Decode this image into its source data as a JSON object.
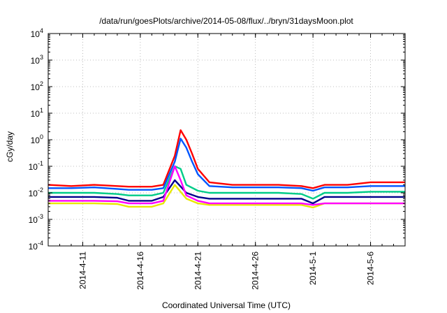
{
  "chart_data": {
    "type": "line",
    "title": "/data/run/goesPlots/archive/2014-05-08/flux/../bryn/31daysMoon.plot",
    "xlabel": "Coordinated Universal Time (UTC)",
    "ylabel": "cGy/day",
    "yscale": "log",
    "ylim": [
      0.0001,
      10000
    ],
    "y_ticks": [
      {
        "value": 0.0001,
        "base": "10",
        "exp": "-4"
      },
      {
        "value": 0.001,
        "base": "10",
        "exp": "-3"
      },
      {
        "value": 0.01,
        "base": "10",
        "exp": "-2"
      },
      {
        "value": 0.1,
        "base": "10",
        "exp": "-1"
      },
      {
        "value": 1,
        "base": "10",
        "exp": "0"
      },
      {
        "value": 10,
        "base": "10",
        "exp": "1"
      },
      {
        "value": 100,
        "base": "10",
        "exp": "2"
      },
      {
        "value": 1000,
        "base": "10",
        "exp": "3"
      },
      {
        "value": 10000,
        "base": "10",
        "exp": "4"
      }
    ],
    "xlim": [
      "2014-04-08",
      "2014-05-09"
    ],
    "x_ticks": [
      "2014-4-11",
      "2014-4-16",
      "2014-4-21",
      "2014-4-26",
      "2014-5-1",
      "2014-5-6"
    ],
    "x_tick_dates": [
      "2014-04-11",
      "2014-04-16",
      "2014-04-21",
      "2014-04-26",
      "2014-05-01",
      "2014-05-06"
    ],
    "grid": true,
    "series": [
      {
        "color": "#ff0000",
        "x": [
          "2014-04-08",
          "2014-04-10",
          "2014-04-12",
          "2014-04-14",
          "2014-04-15",
          "2014-04-17",
          "2014-04-18",
          "2014-04-19",
          "2014-04-19T12:00",
          "2014-04-20",
          "2014-04-20T12:00",
          "2014-04-21",
          "2014-04-22",
          "2014-04-24",
          "2014-04-26",
          "2014-04-28",
          "2014-04-30",
          "2014-05-01",
          "2014-05-02",
          "2014-05-04",
          "2014-05-06",
          "2014-05-09"
        ],
        "values": [
          0.02,
          0.018,
          0.02,
          0.018,
          0.017,
          0.017,
          0.02,
          0.25,
          2.3,
          1.0,
          0.3,
          0.08,
          0.025,
          0.02,
          0.02,
          0.02,
          0.018,
          0.015,
          0.02,
          0.02,
          0.025,
          0.025
        ]
      },
      {
        "color": "#0055ff",
        "x": [
          "2014-04-08",
          "2014-04-10",
          "2014-04-12",
          "2014-04-14",
          "2014-04-15",
          "2014-04-17",
          "2014-04-18",
          "2014-04-19",
          "2014-04-19T12:00",
          "2014-04-20",
          "2014-04-20T12:00",
          "2014-04-21",
          "2014-04-22",
          "2014-04-24",
          "2014-04-26",
          "2014-04-28",
          "2014-04-30",
          "2014-05-01",
          "2014-05-02",
          "2014-05-04",
          "2014-05-06",
          "2014-05-09"
        ],
        "values": [
          0.015,
          0.015,
          0.016,
          0.014,
          0.013,
          0.013,
          0.015,
          0.15,
          1.1,
          0.5,
          0.15,
          0.05,
          0.018,
          0.016,
          0.016,
          0.016,
          0.015,
          0.012,
          0.016,
          0.016,
          0.018,
          0.018
        ]
      },
      {
        "color": "#00cc88",
        "x": [
          "2014-04-08",
          "2014-04-10",
          "2014-04-12",
          "2014-04-14",
          "2014-04-15",
          "2014-04-17",
          "2014-04-18",
          "2014-04-19",
          "2014-04-19T12:00",
          "2014-04-20",
          "2014-04-21",
          "2014-04-22",
          "2014-04-24",
          "2014-04-26",
          "2014-04-28",
          "2014-04-30",
          "2014-05-01",
          "2014-05-02",
          "2014-05-04",
          "2014-05-06",
          "2014-05-09"
        ],
        "values": [
          0.01,
          0.01,
          0.01,
          0.009,
          0.008,
          0.008,
          0.01,
          0.1,
          0.08,
          0.02,
          0.012,
          0.01,
          0.01,
          0.01,
          0.01,
          0.009,
          0.006,
          0.01,
          0.01,
          0.011,
          0.011
        ]
      },
      {
        "color": "#00008b",
        "x": [
          "2014-04-08",
          "2014-04-10",
          "2014-04-12",
          "2014-04-14",
          "2014-04-15",
          "2014-04-17",
          "2014-04-18",
          "2014-04-19",
          "2014-04-20",
          "2014-04-21",
          "2014-04-22",
          "2014-04-24",
          "2014-04-26",
          "2014-04-28",
          "2014-04-30",
          "2014-05-01",
          "2014-05-02",
          "2014-05-04",
          "2014-05-06",
          "2014-05-09"
        ],
        "values": [
          0.007,
          0.007,
          0.007,
          0.0065,
          0.005,
          0.005,
          0.007,
          0.03,
          0.01,
          0.007,
          0.006,
          0.006,
          0.006,
          0.006,
          0.006,
          0.004,
          0.007,
          0.007,
          0.007,
          0.007
        ]
      },
      {
        "color": "#e8e800",
        "x": [
          "2014-04-08",
          "2014-04-10",
          "2014-04-12",
          "2014-04-14",
          "2014-04-15",
          "2014-04-17",
          "2014-04-18",
          "2014-04-19",
          "2014-04-20",
          "2014-04-21",
          "2014-04-22",
          "2014-04-24",
          "2014-04-26",
          "2014-04-28",
          "2014-04-30",
          "2014-05-01",
          "2014-05-02",
          "2014-05-04",
          "2014-05-06",
          "2014-05-09"
        ],
        "values": [
          0.004,
          0.004,
          0.004,
          0.0038,
          0.003,
          0.003,
          0.004,
          0.02,
          0.006,
          0.004,
          0.0035,
          0.0035,
          0.0035,
          0.0035,
          0.0035,
          0.0028,
          0.004,
          0.004,
          0.004,
          0.004
        ]
      },
      {
        "color": "#ff00ff",
        "x": [
          "2014-04-08",
          "2014-04-10",
          "2014-04-12",
          "2014-04-14",
          "2014-04-15",
          "2014-04-17",
          "2014-04-18",
          "2014-04-19",
          "2014-04-19T12:00",
          "2014-04-20",
          "2014-04-21",
          "2014-04-22",
          "2014-04-24",
          "2014-04-26",
          "2014-04-28",
          "2014-04-30",
          "2014-05-01",
          "2014-05-02",
          "2014-05-04",
          "2014-05-06",
          "2014-05-09"
        ],
        "values": [
          0.005,
          0.005,
          0.005,
          0.0048,
          0.004,
          0.004,
          0.005,
          0.1,
          0.03,
          0.008,
          0.005,
          0.004,
          0.004,
          0.004,
          0.004,
          0.004,
          0.0035,
          0.004,
          0.004,
          0.004,
          0.004
        ]
      }
    ]
  }
}
